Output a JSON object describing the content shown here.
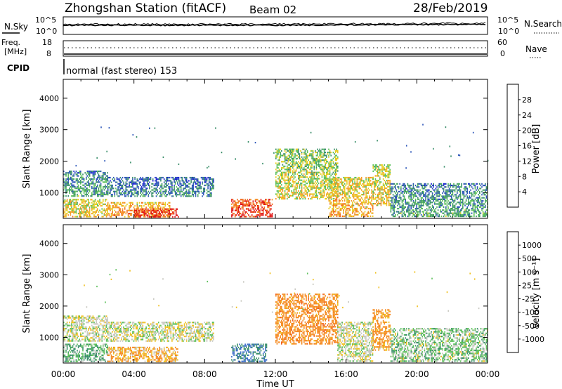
{
  "header": {
    "station": "Zhongshan Station (fitACF)",
    "beam": "Beam 02",
    "date": "28/Feb/2019"
  },
  "top_panels": {
    "nsky_label": "N.Sky",
    "nsearch_label": "N.Search",
    "noise_tick_top": "10^5",
    "noise_tick_bottom": "10^0",
    "freq_label_1": "Freq.",
    "freq_label_2": "[MHz]",
    "freq_tick_top": "18",
    "freq_tick_bottom": "8",
    "nave_label": "Nave",
    "nave_tick_top": "60",
    "nave_tick_bottom": "0",
    "cpid_label": "CPID",
    "cpid_text": "normal (fast stereo) 153"
  },
  "axes": {
    "ylabel": "Slant Range [km]",
    "xlabel": "Time UT",
    "yticks": [
      "1000",
      "2000",
      "3000",
      "4000"
    ],
    "xticks": [
      "00:00",
      "04:00",
      "08:00",
      "12:00",
      "16:00",
      "20:00",
      "00:00"
    ]
  },
  "power_colorbar": {
    "label": "Power [dB]",
    "ticks": [
      "4",
      "8",
      "12",
      "16",
      "20",
      "24",
      "28"
    ],
    "colors": [
      "#1a1ad6",
      "#2b55b8",
      "#3a8f6a",
      "#5cc05a",
      "#e6cc1e",
      "#f59a23",
      "#f26b1d",
      "#e01515"
    ]
  },
  "velocity_colorbar": {
    "label": "Velocity [m s⁻¹]",
    "ticks": [
      "1000",
      "500",
      "100",
      "25",
      "-25",
      "-100",
      "-500",
      "-1000"
    ],
    "colors": [
      "#1a1ad6",
      "#3a6cc8",
      "#3a8f6a",
      "#5cc05a",
      "#c8c8c0",
      "#f0c020",
      "#f58a20",
      "#f05a1a",
      "#e01515"
    ]
  },
  "chart_data": [
    {
      "type": "heatmap",
      "title": "Power [dB]",
      "xlabel": "Time UT",
      "ylabel": "Slant Range [km]",
      "xlim": [
        "00:00",
        "24:00"
      ],
      "ylim": [
        180,
        4600
      ],
      "colorbar_ticks": [
        4,
        8,
        12,
        16,
        20,
        24,
        28
      ],
      "regions": [
        {
          "t_start": 0.0,
          "t_end": 2.5,
          "r_min": 250,
          "r_max": 800,
          "value": 16
        },
        {
          "t_start": 0.0,
          "t_end": 2.5,
          "r_min": 900,
          "r_max": 1700,
          "value": 8
        },
        {
          "t_start": 2.5,
          "t_end": 6.0,
          "r_min": 250,
          "r_max": 700,
          "value": 20
        },
        {
          "t_start": 4.0,
          "t_end": 6.5,
          "r_min": 250,
          "r_max": 500,
          "value": 28
        },
        {
          "t_start": 2.5,
          "t_end": 8.5,
          "r_min": 900,
          "r_max": 1500,
          "value": 6
        },
        {
          "t_start": 9.5,
          "t_end": 11.8,
          "r_min": 250,
          "r_max": 800,
          "value": 26
        },
        {
          "t_start": 12.0,
          "t_end": 15.5,
          "r_min": 800,
          "r_max": 2400,
          "value": 14
        },
        {
          "t_start": 15.0,
          "t_end": 17.5,
          "r_min": 250,
          "r_max": 1500,
          "value": 18
        },
        {
          "t_start": 17.5,
          "t_end": 18.5,
          "r_min": 600,
          "r_max": 1900,
          "value": 16
        },
        {
          "t_start": 18.5,
          "t_end": 24.0,
          "r_min": 250,
          "r_max": 1300,
          "value": 8
        }
      ]
    },
    {
      "type": "heatmap",
      "title": "Velocity [m s⁻¹]",
      "xlabel": "Time UT",
      "ylabel": "Slant Range [km]",
      "xlim": [
        "00:00",
        "24:00"
      ],
      "ylim": [
        180,
        4600
      ],
      "colorbar_ticks": [
        1000,
        500,
        100,
        25,
        -25,
        -100,
        -500,
        -1000
      ],
      "regions": [
        {
          "t_start": 0.0,
          "t_end": 2.5,
          "r_min": 250,
          "r_max": 800,
          "value": 100
        },
        {
          "t_start": 0.0,
          "t_end": 2.5,
          "r_min": 900,
          "r_max": 1700,
          "value": 0
        },
        {
          "t_start": 2.5,
          "t_end": 6.5,
          "r_min": 250,
          "r_max": 700,
          "value": -100
        },
        {
          "t_start": 2.5,
          "t_end": 8.5,
          "r_min": 900,
          "r_max": 1500,
          "value": 0
        },
        {
          "t_start": 9.5,
          "t_end": 11.5,
          "r_min": 250,
          "r_max": 800,
          "value": 500
        },
        {
          "t_start": 12.0,
          "t_end": 15.5,
          "r_min": 800,
          "r_max": 2400,
          "value": -300
        },
        {
          "t_start": 15.5,
          "t_end": 17.5,
          "r_min": 250,
          "r_max": 1500,
          "value": 0
        },
        {
          "t_start": 17.5,
          "t_end": 18.5,
          "r_min": 600,
          "r_max": 1900,
          "value": -200
        },
        {
          "t_start": 18.5,
          "t_end": 24.0,
          "r_min": 250,
          "r_max": 1300,
          "value": 50
        }
      ]
    }
  ]
}
